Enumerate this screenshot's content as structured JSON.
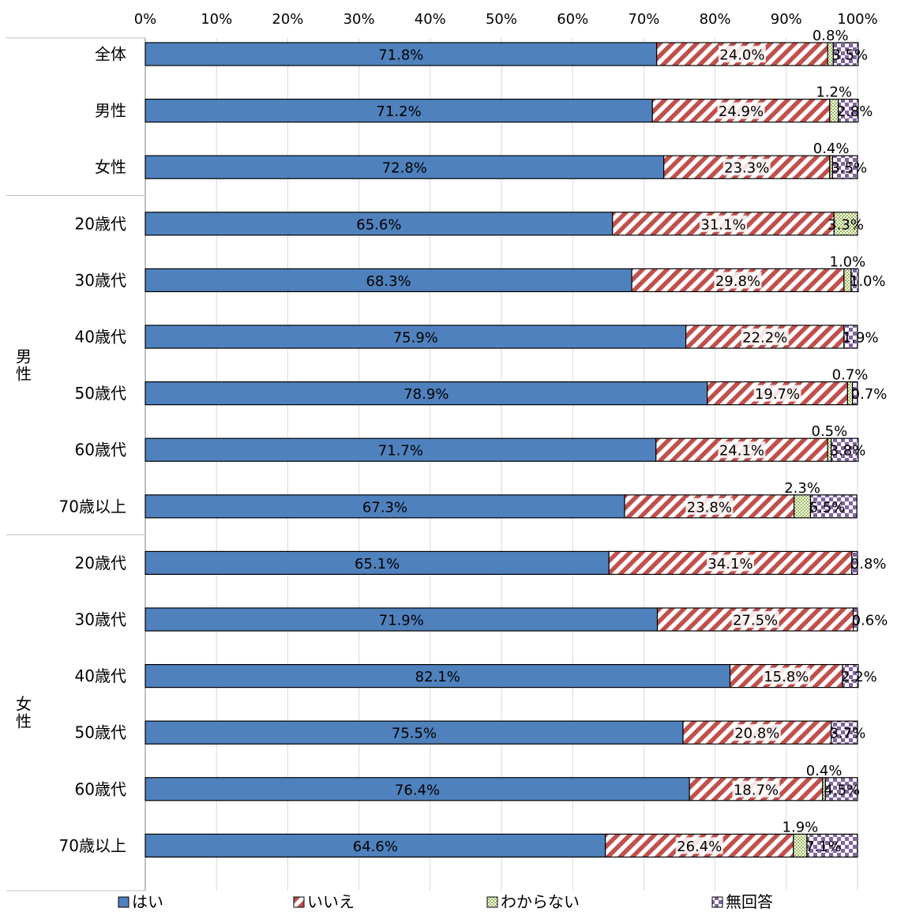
{
  "chart_data": {
    "type": "bar",
    "orientation": "horizontal",
    "stacked": true,
    "xlim": [
      0,
      100
    ],
    "x_ticks": [
      "0%",
      "10%",
      "20%",
      "30%",
      "40%",
      "50%",
      "60%",
      "70%",
      "80%",
      "90%",
      "100%"
    ],
    "groups": [
      {
        "label": "",
        "start": 0,
        "end": 2
      },
      {
        "label": "男性",
        "start": 3,
        "end": 8
      },
      {
        "label": "女性",
        "start": 9,
        "end": 14
      }
    ],
    "categories": [
      "全体",
      "男性",
      "女性",
      "20歳代",
      "30歳代",
      "40歳代",
      "50歳代",
      "60歳代",
      "70歳以上",
      "20歳代",
      "30歳代",
      "40歳代",
      "50歳代",
      "60歳代",
      "70歳以上"
    ],
    "series": [
      {
        "name": "はい",
        "color": "#4f81bd",
        "pattern": "solid",
        "values": [
          71.8,
          71.2,
          72.8,
          65.6,
          68.3,
          75.9,
          78.9,
          71.7,
          67.3,
          65.1,
          71.9,
          82.1,
          75.5,
          76.4,
          64.6
        ],
        "labels": [
          "71.8%",
          "71.2%",
          "72.8%",
          "65.6%",
          "68.3%",
          "75.9%",
          "78.9%",
          "71.7%",
          "67.3%",
          "65.1%",
          "71.9%",
          "82.1%",
          "75.5%",
          "76.4%",
          "64.6%"
        ]
      },
      {
        "name": "いいえ",
        "color": "#c0504d",
        "pattern": "diagonal-stripes",
        "values": [
          24.0,
          24.9,
          23.3,
          31.1,
          29.8,
          22.2,
          19.7,
          24.1,
          23.8,
          34.1,
          27.5,
          15.8,
          20.8,
          18.7,
          26.4
        ],
        "labels": [
          "24.0%",
          "24.9%",
          "23.3%",
          "31.1%",
          "29.8%",
          "22.2%",
          "19.7%",
          "24.1%",
          "23.8%",
          "34.1%",
          "27.5%",
          "15.8%",
          "20.8%",
          "18.7%",
          "26.4%"
        ]
      },
      {
        "name": "わからない",
        "color": "#9bbb59",
        "pattern": "checker",
        "values": [
          0.8,
          1.2,
          0.4,
          3.3,
          1.0,
          0.0,
          0.7,
          0.5,
          2.3,
          0.0,
          0.0,
          0.0,
          0.0,
          0.4,
          1.9
        ],
        "labels": [
          "0.8%",
          "1.2%",
          "0.4%",
          "3.3%",
          "1.0%",
          "",
          "0.7%",
          "0.5%",
          "2.3%",
          "",
          "",
          "",
          "",
          "0.4%",
          "1.9%"
        ]
      },
      {
        "name": "無回答",
        "color": "#8064a2",
        "pattern": "large-checker",
        "values": [
          3.5,
          2.8,
          3.5,
          0.0,
          1.0,
          1.9,
          0.7,
          3.8,
          6.5,
          0.8,
          0.6,
          2.2,
          3.7,
          4.5,
          7.1
        ],
        "labels": [
          "3.5%",
          "2.8%",
          "3.5%",
          "",
          "1.0%",
          "1.9%",
          "0.7%",
          "3.8%",
          "6.5%",
          "0.8%",
          "0.6%",
          "2.2%",
          "3.7%",
          "4.5%",
          "7.1%"
        ]
      }
    ],
    "legend_position": "bottom",
    "grid": true
  }
}
